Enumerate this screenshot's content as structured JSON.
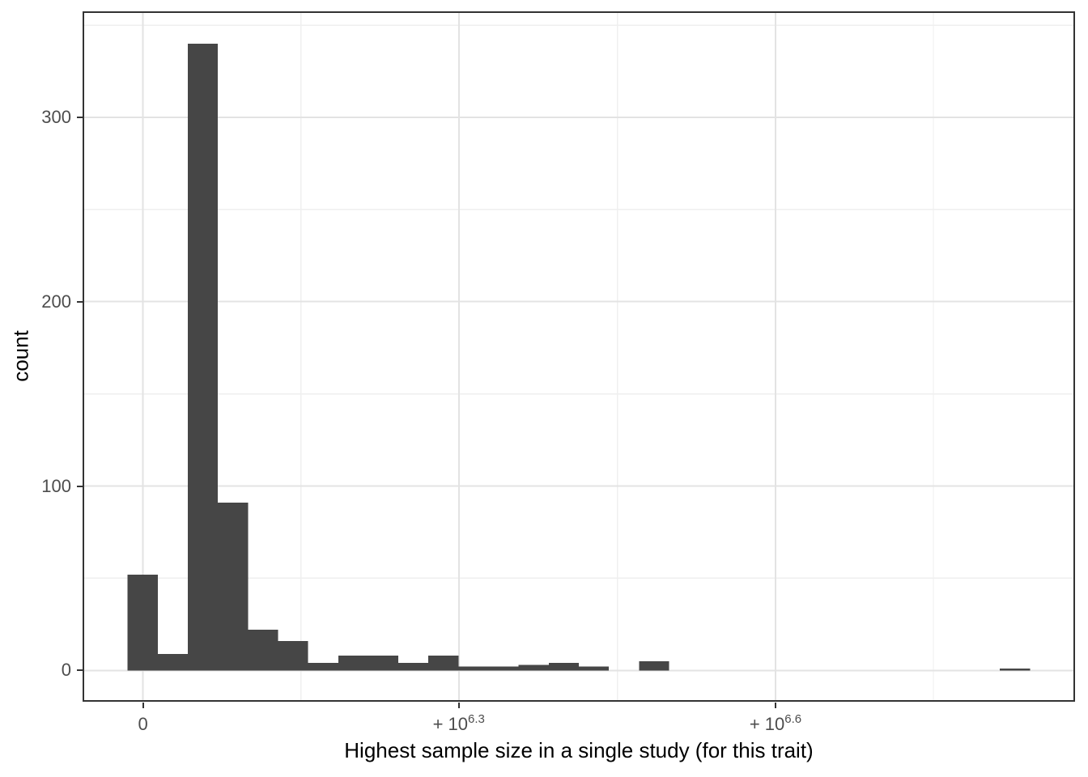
{
  "chart_data": {
    "type": "histogram",
    "title": "",
    "xlabel": "Highest sample size in a single study (for this trait)",
    "ylabel": "count",
    "legend": false,
    "grid": true,
    "x_axis": {
      "scale": "pseudo-log (signed log10 of sample size)",
      "ticks": [
        {
          "base": "0",
          "sup": "",
          "u": 0.51
        },
        {
          "base": "+ 10",
          "sup": "6.3",
          "u": 11.01
        },
        {
          "base": "+ 10",
          "sup": "6.6",
          "u": 21.54
        }
      ],
      "minor_u": [
        5.76,
        16.28,
        26.79
      ],
      "domain_u": [
        -1.5,
        31.5
      ]
    },
    "y_axis": {
      "ticks": [
        {
          "label": "0",
          "value": 0
        },
        {
          "label": "100",
          "value": 100
        },
        {
          "label": "200",
          "value": 200
        },
        {
          "label": "300",
          "value": 300
        }
      ],
      "minor_values": [
        50,
        150,
        250,
        350
      ],
      "domain": [
        -17,
        357.5
      ]
    },
    "bins": {
      "start_u": 0,
      "width_u": 1,
      "counts": [
        52,
        9,
        340,
        91,
        22,
        16,
        4,
        8,
        8,
        4,
        8,
        2,
        2,
        3,
        4,
        2,
        0,
        5,
        0,
        0,
        0,
        0,
        0,
        0,
        0,
        0,
        0,
        0,
        0,
        1
      ]
    },
    "colors": {
      "background": "#ffffff",
      "bar_fill": "#464646",
      "grid_major": "#e3e3e3",
      "grid_minor": "#efefef",
      "panel_border": "#333333",
      "tick_mark": "#333333",
      "tick_text": "#4d4d4d",
      "title_text": "#000000"
    }
  }
}
